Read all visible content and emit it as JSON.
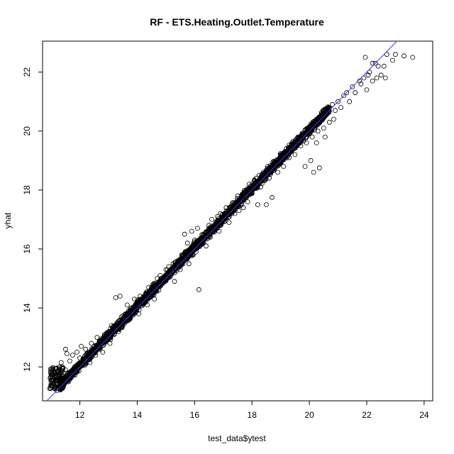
{
  "chart_data": {
    "type": "scatter",
    "title": "RF - ETS.Heating.Outlet.Temperature",
    "xlabel": "test_data$ytest",
    "ylabel": "yhat",
    "xlim": [
      10.7,
      24.3
    ],
    "ylim": [
      10.85,
      23.05
    ],
    "xticks": [
      12,
      14,
      16,
      18,
      20,
      22,
      24
    ],
    "yticks": [
      12,
      14,
      16,
      18,
      20,
      22
    ],
    "grid": false,
    "reference_line": {
      "slope": 1,
      "intercept": 0,
      "color": "#3a3aff"
    },
    "series": [
      {
        "marker": "open-circle",
        "color": "#000000",
        "points": [
          [
            10.98,
            11.82
          ],
          [
            11.0,
            11.45
          ],
          [
            11.02,
            11.3
          ],
          [
            11.05,
            11.65
          ],
          [
            11.08,
            11.55
          ],
          [
            11.2,
            11.2
          ],
          [
            11.3,
            11.35
          ],
          [
            11.35,
            12.15
          ],
          [
            11.4,
            11.6
          ],
          [
            11.45,
            11.4
          ],
          [
            11.5,
            11.9
          ],
          [
            11.5,
            12.6
          ],
          [
            11.55,
            12.45
          ],
          [
            11.6,
            11.7
          ],
          [
            11.65,
            12.2
          ],
          [
            11.7,
            11.8
          ],
          [
            11.75,
            12.4
          ],
          [
            11.8,
            11.95
          ],
          [
            11.9,
            12.5
          ],
          [
            11.95,
            12.05
          ],
          [
            12.0,
            12.3
          ],
          [
            12.05,
            12.7
          ],
          [
            12.1,
            12.05
          ],
          [
            12.2,
            12.6
          ],
          [
            12.25,
            12.3
          ],
          [
            12.3,
            12.5
          ],
          [
            12.35,
            12.15
          ],
          [
            12.4,
            12.8
          ],
          [
            12.5,
            12.7
          ],
          [
            12.55,
            12.4
          ],
          [
            12.6,
            13.0
          ],
          [
            12.7,
            12.6
          ],
          [
            12.75,
            12.95
          ],
          [
            12.8,
            12.5
          ],
          [
            12.85,
            13.05
          ],
          [
            12.9,
            12.85
          ],
          [
            13.0,
            13.2
          ],
          [
            13.05,
            12.8
          ],
          [
            13.1,
            13.4
          ],
          [
            13.2,
            13.1
          ],
          [
            13.25,
            14.35
          ],
          [
            13.3,
            13.5
          ],
          [
            13.35,
            13.2
          ],
          [
            13.4,
            14.4
          ],
          [
            13.45,
            13.7
          ],
          [
            13.5,
            13.4
          ],
          [
            13.6,
            13.8
          ],
          [
            13.65,
            14.1
          ],
          [
            13.7,
            13.6
          ],
          [
            13.8,
            14.0
          ],
          [
            13.85,
            13.75
          ],
          [
            13.9,
            14.3
          ],
          [
            14.0,
            14.05
          ],
          [
            14.05,
            13.8
          ],
          [
            14.1,
            14.4
          ],
          [
            14.2,
            14.2
          ],
          [
            14.3,
            14.5
          ],
          [
            14.35,
            14.1
          ],
          [
            14.4,
            14.7
          ],
          [
            14.5,
            14.45
          ],
          [
            14.55,
            14.8
          ],
          [
            14.6,
            14.3
          ],
          [
            14.7,
            15.0
          ],
          [
            14.75,
            14.6
          ],
          [
            14.8,
            15.1
          ],
          [
            14.9,
            14.85
          ],
          [
            15.0,
            15.3
          ],
          [
            15.05,
            15.0
          ],
          [
            15.1,
            15.4
          ],
          [
            15.2,
            15.15
          ],
          [
            15.25,
            15.5
          ],
          [
            15.3,
            14.9
          ],
          [
            15.4,
            15.6
          ],
          [
            15.5,
            15.3
          ],
          [
            15.55,
            15.8
          ],
          [
            15.6,
            15.5
          ],
          [
            15.65,
            16.5
          ],
          [
            15.7,
            15.7
          ],
          [
            15.75,
            16.2
          ],
          [
            15.8,
            15.5
          ],
          [
            15.85,
            16.0
          ],
          [
            15.9,
            16.6
          ],
          [
            15.95,
            15.8
          ],
          [
            16.0,
            16.3
          ],
          [
            16.05,
            15.9
          ],
          [
            16.1,
            16.7
          ],
          [
            16.15,
            14.62
          ],
          [
            16.2,
            16.3
          ],
          [
            16.3,
            16.5
          ],
          [
            16.4,
            16.1
          ],
          [
            16.5,
            16.8
          ],
          [
            16.55,
            16.4
          ],
          [
            16.6,
            17.0
          ],
          [
            16.7,
            16.7
          ],
          [
            16.8,
            17.1
          ],
          [
            16.85,
            16.6
          ],
          [
            16.9,
            17.2
          ],
          [
            17.0,
            17.0
          ],
          [
            17.1,
            17.4
          ],
          [
            17.2,
            16.9
          ],
          [
            17.3,
            17.5
          ],
          [
            17.4,
            17.2
          ],
          [
            17.5,
            17.8
          ],
          [
            17.55,
            17.3
          ],
          [
            17.6,
            17.7
          ],
          [
            17.7,
            17.4
          ],
          [
            17.8,
            18.0
          ],
          [
            17.85,
            17.6
          ],
          [
            17.9,
            18.2
          ],
          [
            18.0,
            17.9
          ],
          [
            18.1,
            18.3
          ],
          [
            18.2,
            17.5
          ],
          [
            18.25,
            18.5
          ],
          [
            18.3,
            18.1
          ],
          [
            18.4,
            18.6
          ],
          [
            18.5,
            17.5
          ],
          [
            18.55,
            18.8
          ],
          [
            18.6,
            18.4
          ],
          [
            18.7,
            17.75
          ],
          [
            18.8,
            18.9
          ],
          [
            18.9,
            18.6
          ],
          [
            19.0,
            19.2
          ],
          [
            19.1,
            18.8
          ],
          [
            19.2,
            19.4
          ],
          [
            19.3,
            19.1
          ],
          [
            19.4,
            19.6
          ],
          [
            19.5,
            19.2
          ],
          [
            19.6,
            19.8
          ],
          [
            19.7,
            19.5
          ],
          [
            19.8,
            19.9
          ],
          [
            19.85,
            18.8
          ],
          [
            19.9,
            19.6
          ],
          [
            20.0,
            20.1
          ],
          [
            20.05,
            19.0
          ],
          [
            20.1,
            19.8
          ],
          [
            20.15,
            18.6
          ],
          [
            20.2,
            20.3
          ],
          [
            20.25,
            19.6
          ],
          [
            20.3,
            20.0
          ],
          [
            20.35,
            18.75
          ],
          [
            20.4,
            20.4
          ],
          [
            20.5,
            20.1
          ],
          [
            20.55,
            19.8
          ],
          [
            20.6,
            20.6
          ],
          [
            20.7,
            20.3
          ],
          [
            20.8,
            20.9
          ],
          [
            20.85,
            20.4
          ],
          [
            20.9,
            20.7
          ],
          [
            21.0,
            21.0
          ],
          [
            21.1,
            20.8
          ],
          [
            21.2,
            21.2
          ],
          [
            21.3,
            21.3
          ],
          [
            21.4,
            21.0
          ],
          [
            21.5,
            21.5
          ],
          [
            21.6,
            21.3
          ],
          [
            21.8,
            21.6
          ],
          [
            21.9,
            21.8
          ],
          [
            22.0,
            21.4
          ],
          [
            22.05,
            21.9
          ],
          [
            22.1,
            22.0
          ],
          [
            22.2,
            21.7
          ],
          [
            22.3,
            22.3
          ],
          [
            22.35,
            21.8
          ],
          [
            22.4,
            22.2
          ],
          [
            22.5,
            21.9
          ],
          [
            22.6,
            22.2
          ],
          [
            22.65,
            21.8
          ],
          [
            22.7,
            22.6
          ],
          [
            22.9,
            22.4
          ],
          [
            23.0,
            22.6
          ],
          [
            23.3,
            22.55
          ],
          [
            23.6,
            22.5
          ],
          [
            21.75,
            21.7
          ],
          [
            21.95,
            22.5
          ],
          [
            22.2,
            22.3
          ]
        ]
      }
    ]
  }
}
